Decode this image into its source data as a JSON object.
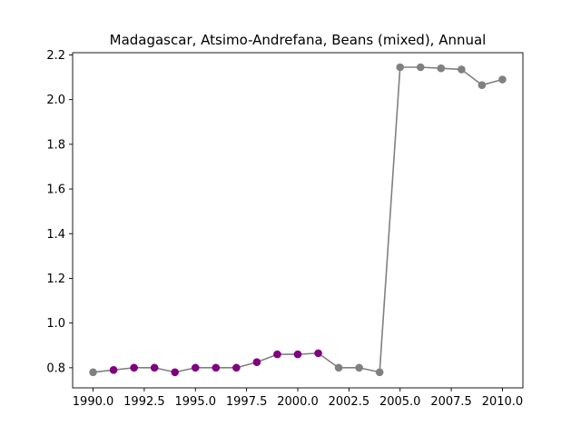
{
  "chart_data": {
    "type": "line",
    "title": "Madagascar, Atsimo-Andrefana, Beans (mixed), Annual",
    "xlabel": "",
    "ylabel": "",
    "xlim": [
      1989.0,
      2011.0
    ],
    "ylim": [
      0.71,
      2.21
    ],
    "grid": false,
    "x_ticks": [
      1990.0,
      1992.5,
      1995.0,
      1997.5,
      2000.0,
      2002.5,
      2005.0,
      2007.5,
      2010.0
    ],
    "x_tick_labels": [
      "1990.0",
      "1992.5",
      "1995.0",
      "1997.5",
      "2000.0",
      "2002.5",
      "2005.0",
      "2007.5",
      "2010.0"
    ],
    "y_ticks": [
      0.8,
      1.0,
      1.2,
      1.4,
      1.6,
      1.8,
      2.0,
      2.2
    ],
    "y_tick_labels": [
      "0.8",
      "1.0",
      "1.2",
      "1.4",
      "1.6",
      "1.8",
      "2.0",
      "2.2"
    ],
    "line_color": "#808080",
    "marker_colors": {
      "measured": "#800080",
      "estimated": "#808080"
    },
    "series": [
      {
        "x": [
          1990,
          1991,
          1992,
          1993,
          1994,
          1995,
          1996,
          1997,
          1998,
          1999,
          2000,
          2001,
          2002,
          2003,
          2004,
          2005,
          2006,
          2007,
          2008,
          2009,
          2010
        ],
        "values": [
          0.78,
          0.79,
          0.8,
          0.8,
          0.78,
          0.8,
          0.8,
          0.8,
          0.825,
          0.86,
          0.86,
          0.865,
          0.8,
          0.8,
          0.78,
          2.145,
          2.145,
          2.14,
          2.135,
          2.065,
          2.09
        ],
        "marker": [
          "estimated",
          "measured",
          "measured",
          "measured",
          "measured",
          "measured",
          "measured",
          "measured",
          "measured",
          "measured",
          "measured",
          "measured",
          "estimated",
          "estimated",
          "estimated",
          "estimated",
          "estimated",
          "estimated",
          "estimated",
          "estimated",
          "estimated"
        ]
      }
    ]
  }
}
